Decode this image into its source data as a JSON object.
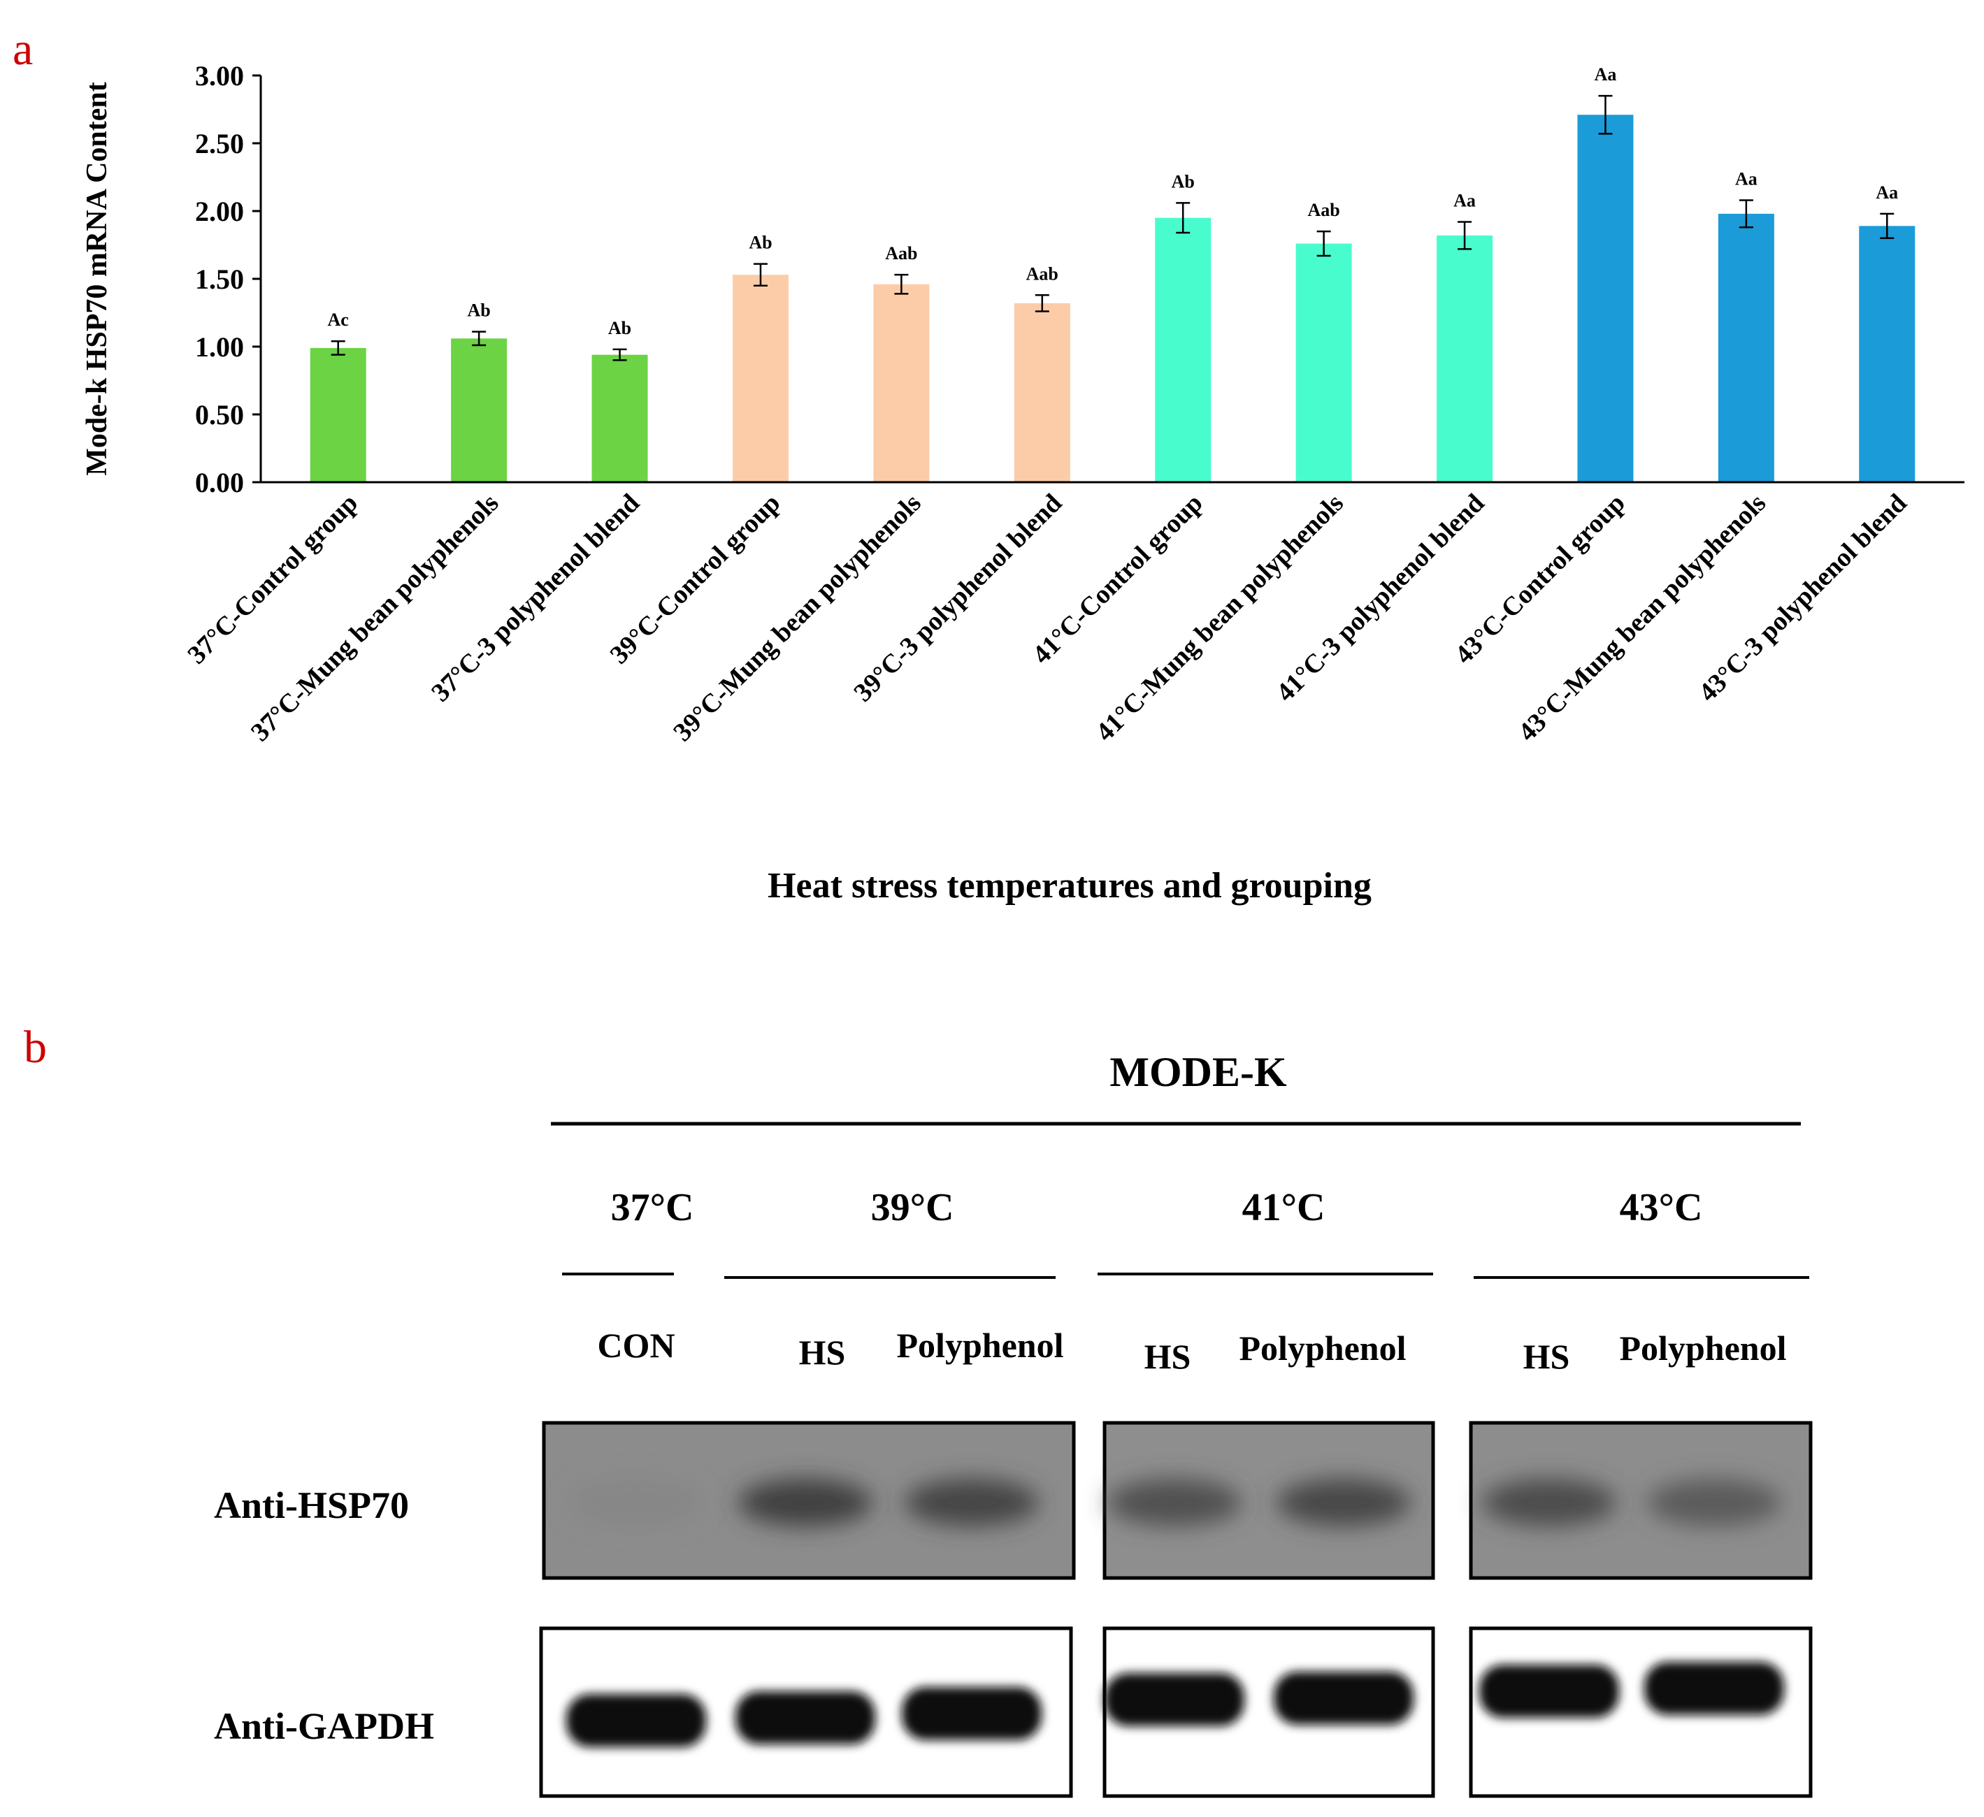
{
  "panel_a_label": "a",
  "panel_b_label": "b",
  "colors": {
    "panel_label": "#cc0000",
    "g37": "#6cd344",
    "g39": "#fccca8",
    "g41": "#48fccd",
    "g43": "#1b9bd8"
  },
  "chart_data": {
    "type": "bar",
    "xlabel": "Heat stress temperatures and grouping",
    "ylabel": "Mode-k  HSP70 mRNA Content",
    "ylim": [
      0,
      3
    ],
    "yticks": [
      "0.00",
      "0.50",
      "1.00",
      "1.50",
      "2.00",
      "2.50",
      "3.00"
    ],
    "grid": false,
    "categories": [
      "37°C-Control group",
      "37°C-Mung bean polyphenols",
      "37°C-3 polyphenol blend",
      "39°C-Control group",
      "39°C-Mung bean polyphenols",
      "39°C-3 polyphenol blend",
      "41°C-Control group",
      "41°C-Mung bean polyphenols",
      "41°C-3 polyphenol blend",
      "43°C-Control group",
      "43°C-Mung bean polyphenols",
      "43°C-3 polyphenol blend"
    ],
    "values": [
      0.99,
      1.06,
      0.94,
      1.53,
      1.46,
      1.32,
      1.95,
      1.76,
      1.82,
      2.71,
      1.98,
      1.89
    ],
    "errors": [
      0.05,
      0.05,
      0.04,
      0.08,
      0.07,
      0.06,
      0.11,
      0.09,
      0.1,
      0.14,
      0.1,
      0.09
    ],
    "annotations": [
      "Ac",
      "Ab",
      "Ab",
      "Ab",
      "Aab",
      "Aab",
      "Ab",
      "Aab",
      "Aa",
      "Aa",
      "Aa",
      "Aa"
    ],
    "group_colors": [
      "#6cd344",
      "#6cd344",
      "#6cd344",
      "#fccca8",
      "#fccca8",
      "#fccca8",
      "#48fccd",
      "#48fccd",
      "#48fccd",
      "#1b9bd8",
      "#1b9bd8",
      "#1b9bd8"
    ]
  },
  "blot": {
    "title": "MODE-K",
    "temperatures": [
      "37°C",
      "39°C",
      "41°C",
      "43°C"
    ],
    "lanes": [
      "CON",
      "HS",
      "Polyphenol",
      "HS",
      "Polyphenol",
      "HS",
      "Polyphenol"
    ],
    "rows": [
      "Anti-HSP70",
      "Anti-GAPDH"
    ],
    "hsp70_intensity": [
      0.05,
      0.85,
      0.8,
      0.65,
      0.75,
      0.7,
      0.55
    ],
    "gapdh_intensity": [
      1.0,
      1.0,
      0.95,
      0.95,
      0.95,
      0.95,
      0.95
    ]
  }
}
